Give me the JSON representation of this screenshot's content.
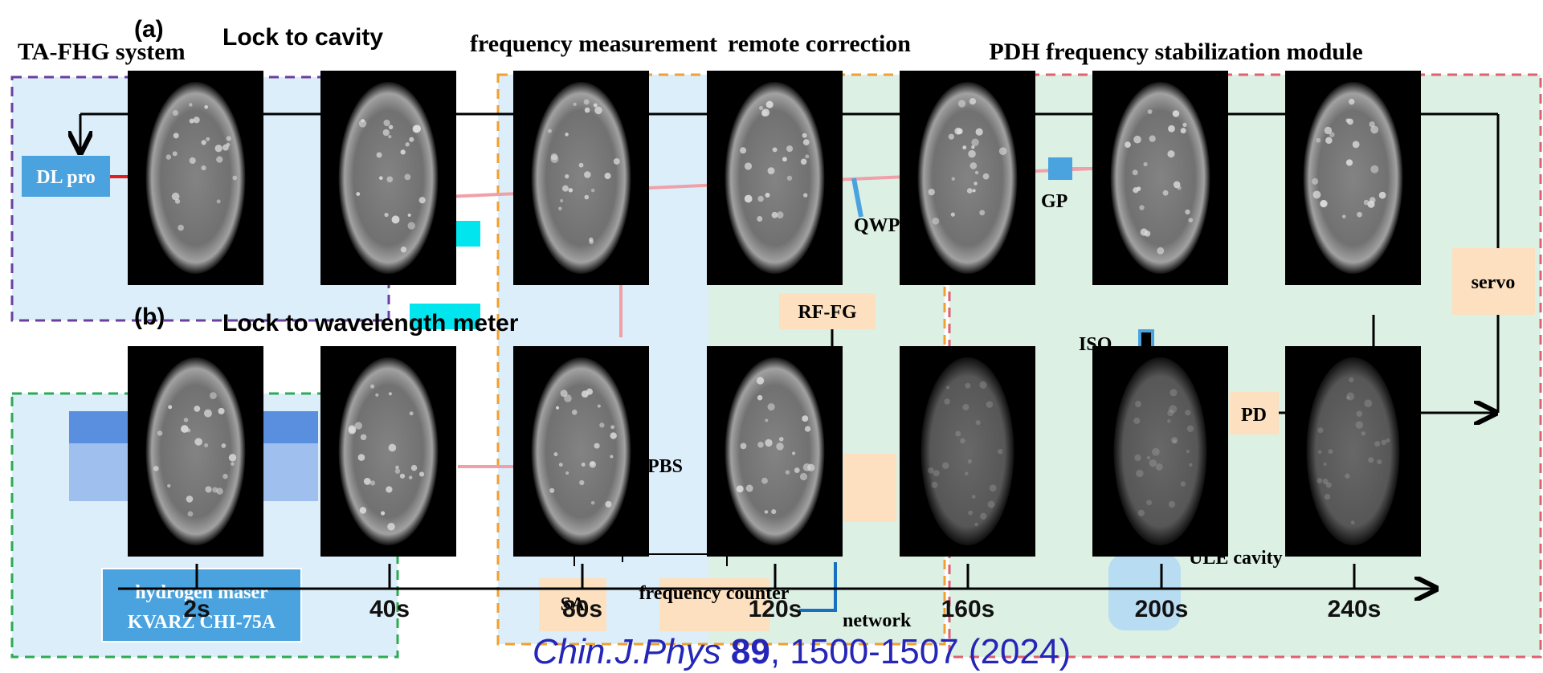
{
  "panels": [
    {
      "tag": "(a)",
      "label": "Lock to cavity"
    },
    {
      "tag": "(b)",
      "label": "Lock to wavelength meter"
    }
  ],
  "timeline": {
    "ticks": [
      "2s",
      "40s",
      "80s",
      "120s",
      "160s",
      "200s",
      "240s"
    ]
  },
  "diagram": {
    "sections": [
      "TA-FHG system",
      "frequency measurement",
      "remote correction",
      "PDH frequency stabilization module"
    ],
    "labels": [
      "DL pro",
      "QWP",
      "GP",
      "RF-FG",
      "servo",
      "ISO",
      "PD",
      "PBS",
      "hydrogen maser",
      "KVARZ CHI-75A",
      "SA",
      "frequency counter",
      "network",
      "ULE cavity"
    ]
  },
  "citation": {
    "journal": "Chin.J.Phys",
    "volume": "89",
    "pages": ", 1500-1507 (2024)"
  }
}
